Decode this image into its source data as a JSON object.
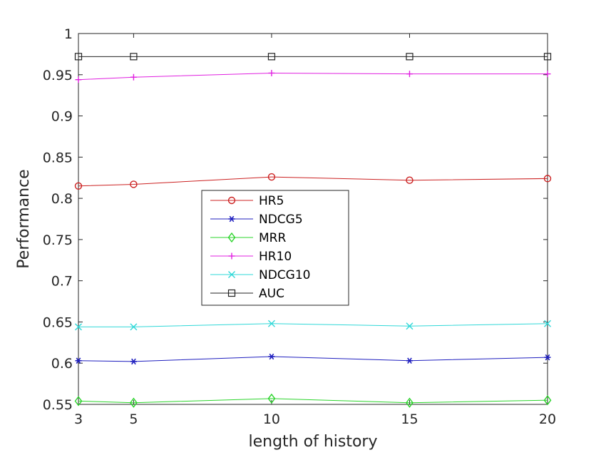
{
  "chart_data": {
    "type": "line",
    "xlabel": "length of history",
    "ylabel": "Performance",
    "x": [
      3,
      5,
      10,
      15,
      20
    ],
    "xticks": [
      3,
      5,
      10,
      15,
      20
    ],
    "ylim": [
      0.55,
      1
    ],
    "yticks": [
      "0.55",
      "0.6",
      "0.65",
      "0.7",
      "0.75",
      "0.8",
      "0.85",
      "0.9",
      "0.95",
      "1"
    ],
    "grid": false,
    "legend_placement": "center-left",
    "series": [
      {
        "name": "HR5",
        "color": "#cc2222",
        "marker": "circle",
        "values": [
          0.815,
          0.817,
          0.826,
          0.822,
          0.824
        ]
      },
      {
        "name": "NDCG5",
        "color": "#1f1fbf",
        "marker": "asterisk",
        "values": [
          0.603,
          0.602,
          0.608,
          0.603,
          0.607
        ]
      },
      {
        "name": "MRR",
        "color": "#2bd42b",
        "marker": "diamond",
        "values": [
          0.554,
          0.552,
          0.557,
          0.552,
          0.555
        ]
      },
      {
        "name": "HR10",
        "color": "#e020e0",
        "marker": "plus",
        "values": [
          0.944,
          0.947,
          0.952,
          0.951,
          0.951
        ]
      },
      {
        "name": "NDCG10",
        "color": "#30d8d8",
        "marker": "x",
        "values": [
          0.644,
          0.644,
          0.648,
          0.645,
          0.648
        ]
      },
      {
        "name": "AUC",
        "color": "#222222",
        "marker": "square",
        "values": [
          0.972,
          0.972,
          0.972,
          0.972,
          0.972
        ]
      }
    ]
  }
}
